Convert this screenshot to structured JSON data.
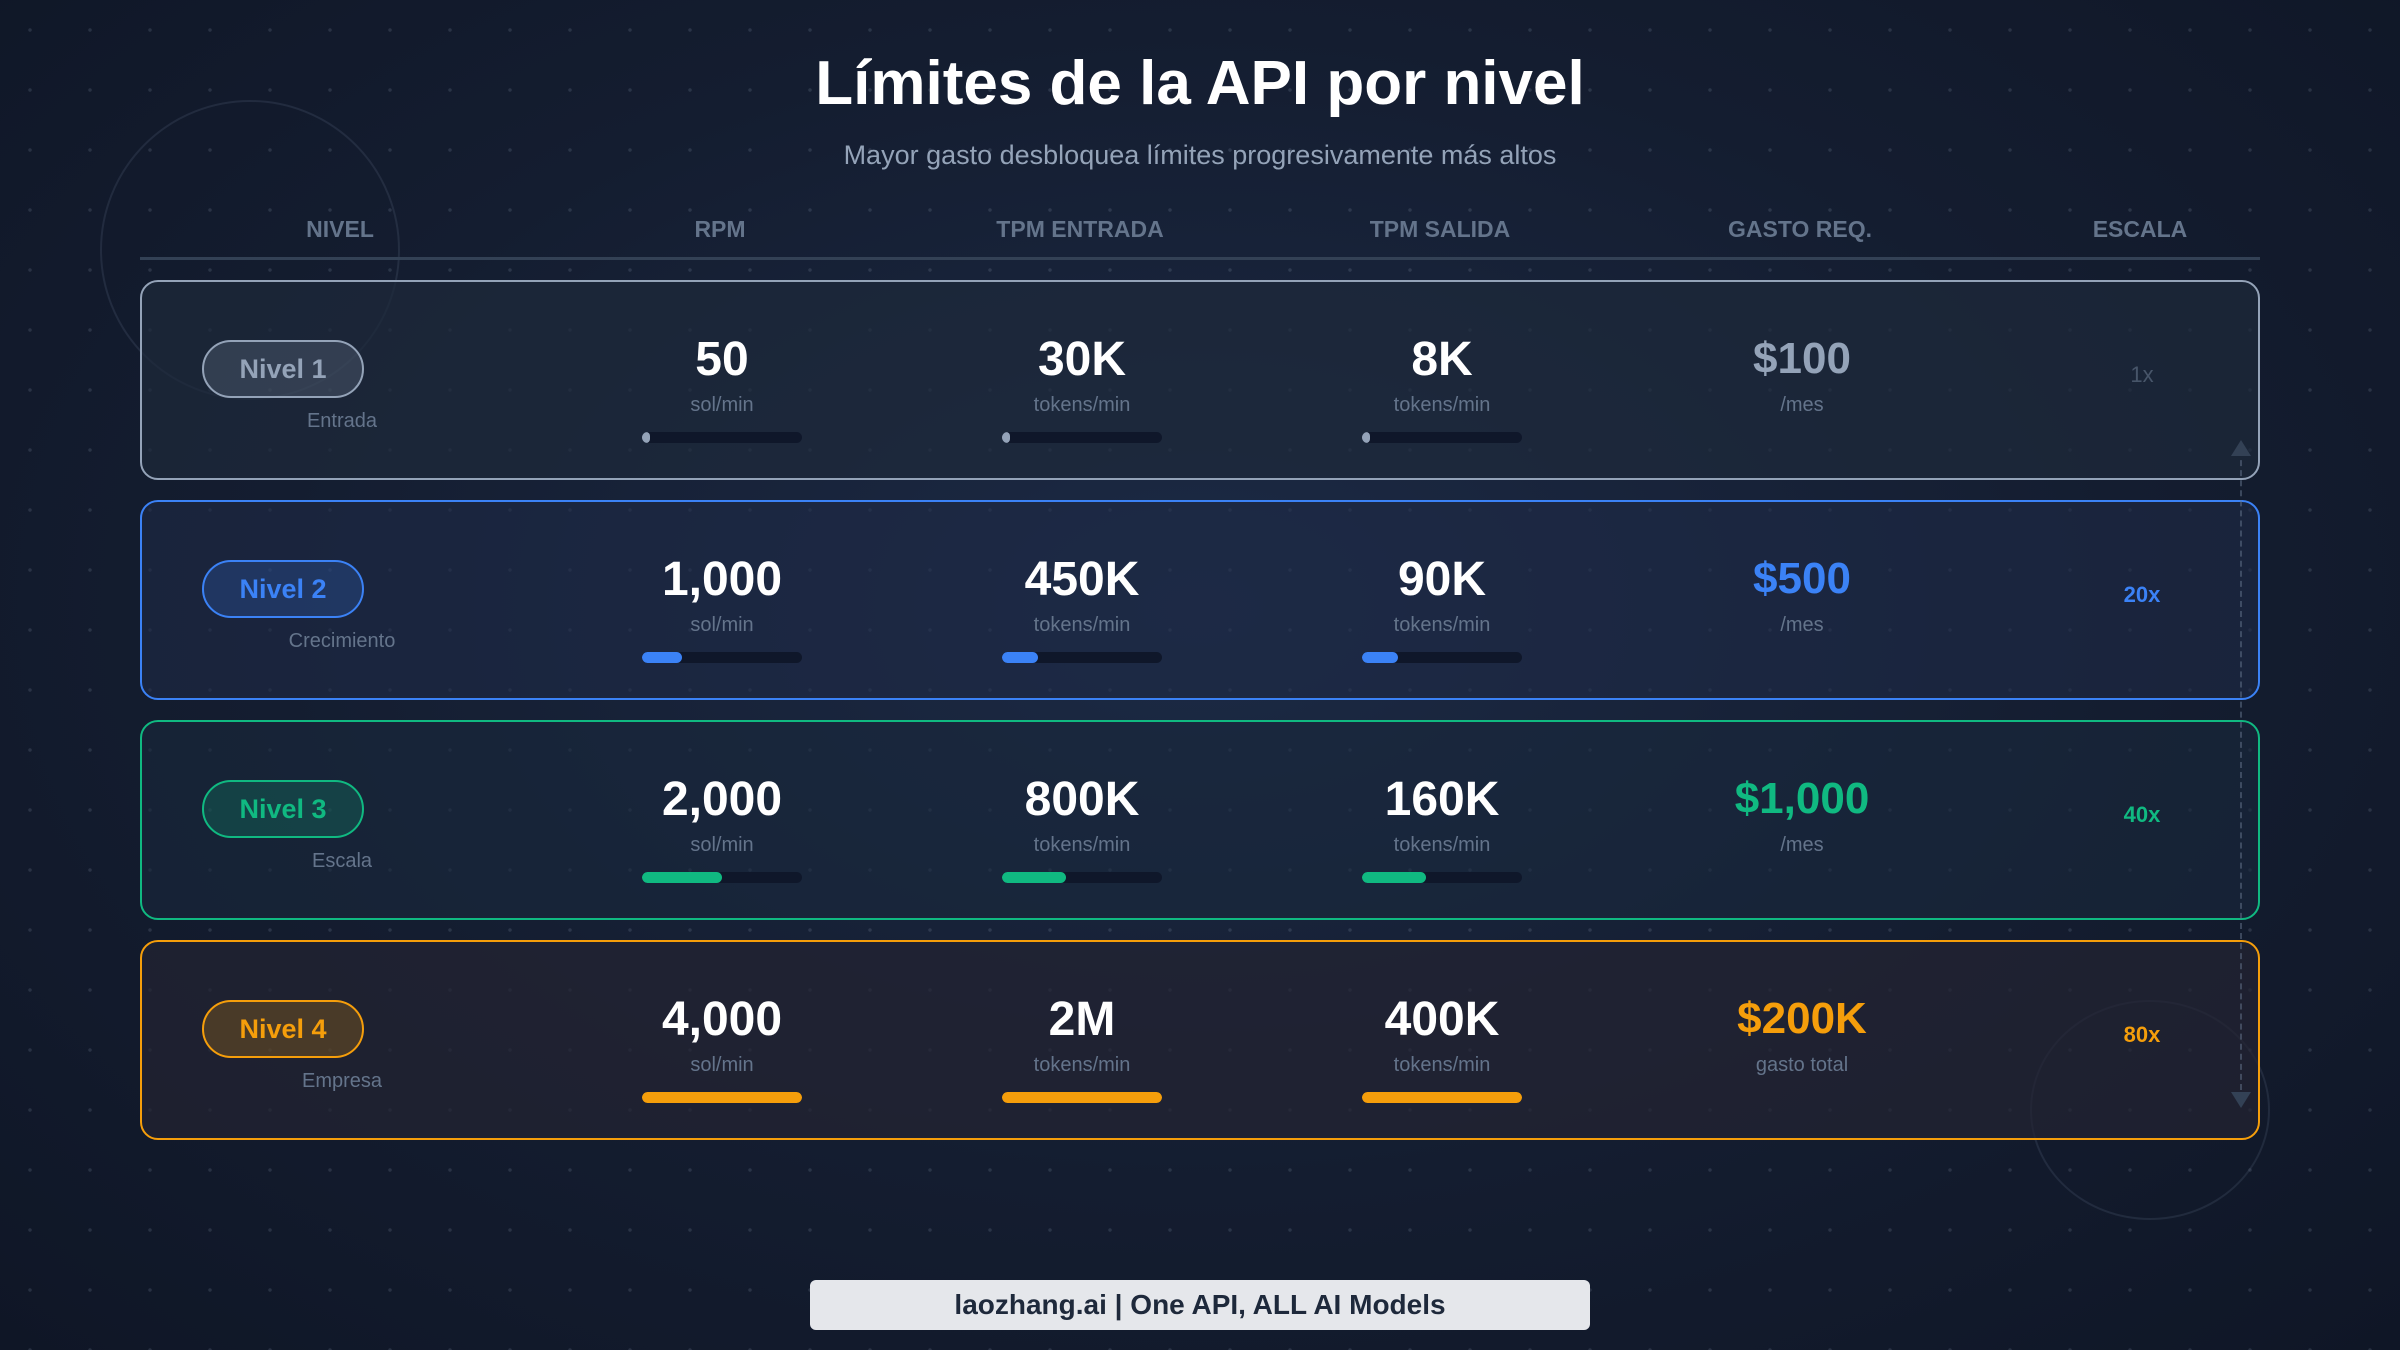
{
  "title": "Límites de la API por nivel",
  "subtitle": "Mayor gasto desbloquea límites progresivamente más altos",
  "headers": [
    "NIVEL",
    "RPM",
    "TPM ENTRADA",
    "TPM SALIDA",
    "GASTO REQ.",
    "ESCALA"
  ],
  "tiers": [
    {
      "label": "Nivel 1",
      "name": "Entrada",
      "color": "#94a3b8",
      "rpm": "50",
      "rpm_unit": "sol/min",
      "tpm_in": "30K",
      "tpm_in_unit": "tokens/min",
      "tpm_out": "8K",
      "tpm_out_unit": "tokens/min",
      "spend": "$100",
      "spend_unit": "/mes",
      "scale": "1x",
      "rpm_pct": 1.25,
      "tpm_in_pct": 1.5,
      "tpm_out_pct": 2
    },
    {
      "label": "Nivel 2",
      "name": "Crecimiento",
      "color": "#3b82f6",
      "rpm": "1,000",
      "rpm_unit": "sol/min",
      "tpm_in": "450K",
      "tpm_in_unit": "tokens/min",
      "tpm_out": "90K",
      "tpm_out_unit": "tokens/min",
      "spend": "$500",
      "spend_unit": "/mes",
      "scale": "20x",
      "rpm_pct": 25,
      "tpm_in_pct": 22.5,
      "tpm_out_pct": 22.5
    },
    {
      "label": "Nivel 3",
      "name": "Escala",
      "color": "#10b981",
      "rpm": "2,000",
      "rpm_unit": "sol/min",
      "tpm_in": "800K",
      "tpm_in_unit": "tokens/min",
      "tpm_out": "160K",
      "tpm_out_unit": "tokens/min",
      "spend": "$1,000",
      "spend_unit": "/mes",
      "scale": "40x",
      "rpm_pct": 50,
      "tpm_in_pct": 40,
      "tpm_out_pct": 40
    },
    {
      "label": "Nivel 4",
      "name": "Empresa",
      "color": "#f59e0b",
      "rpm": "4,000",
      "rpm_unit": "sol/min",
      "tpm_in": "2M",
      "tpm_in_unit": "tokens/min",
      "tpm_out": "400K",
      "tpm_out_unit": "tokens/min",
      "spend": "$200K",
      "spend_unit": "gasto total",
      "scale": "80x",
      "rpm_pct": 100,
      "tpm_in_pct": 100,
      "tpm_out_pct": 100
    }
  ],
  "footer": "laozhang.ai | One API, ALL AI Models"
}
